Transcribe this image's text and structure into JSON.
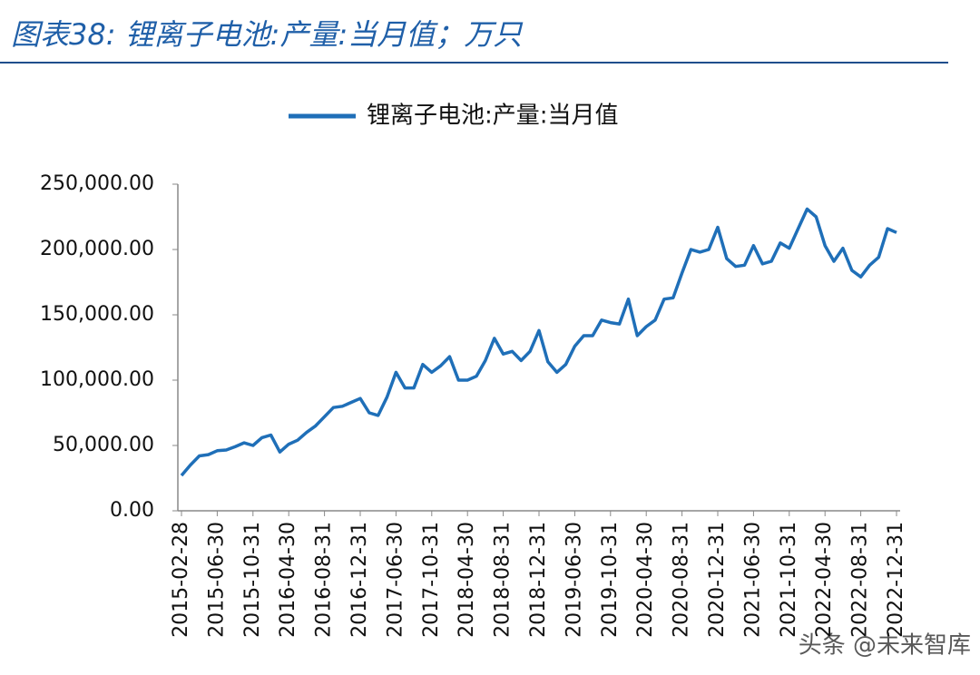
{
  "chart_data": {
    "type": "line",
    "title": "图表38:  锂离子电池:产量:当月值；万只",
    "watermark": "头条 @未来智库",
    "categories": [
      "2015-02-28",
      null,
      null,
      null,
      "2015-06-30",
      null,
      null,
      null,
      "2015-10-31",
      null,
      null,
      null,
      "2016-04-30",
      null,
      null,
      null,
      "2016-08-31",
      null,
      null,
      null,
      "2016-12-31",
      null,
      null,
      null,
      "2017-06-30",
      null,
      null,
      null,
      "2017-10-31",
      null,
      null,
      null,
      "2018-04-30",
      null,
      null,
      null,
      "2018-08-31",
      null,
      null,
      null,
      "2018-12-31",
      null,
      null,
      null,
      "2019-06-30",
      null,
      null,
      null,
      "2019-10-31",
      null,
      null,
      null,
      "2020-04-30",
      null,
      null,
      null,
      "2020-08-31",
      null,
      null,
      null,
      "2020-12-31",
      null,
      null,
      null,
      "2021-06-30",
      null,
      null,
      null,
      "2021-10-31",
      null,
      null,
      null,
      "2022-04-30",
      null,
      null,
      null,
      "2022-08-31",
      null,
      null,
      null,
      "2022-12-31"
    ],
    "series": [
      {
        "name": "锂离子电池:产量:当月值",
        "color": "#1f6fb8",
        "values": [
          27000,
          35000,
          42000,
          43000,
          46000,
          46500,
          49000,
          52000,
          50000,
          56000,
          58000,
          45000,
          51000,
          54000,
          60000,
          65000,
          72000,
          79000,
          80000,
          83000,
          86000,
          75000,
          73000,
          87000,
          106000,
          94000,
          94000,
          112000,
          106000,
          111000,
          118000,
          100000,
          100000,
          103000,
          115000,
          132000,
          120000,
          122000,
          115000,
          122000,
          138000,
          114000,
          106000,
          112000,
          126000,
          134000,
          134000,
          146000,
          144000,
          143000,
          162000,
          134000,
          141000,
          146000,
          162000,
          163000,
          182000,
          200000,
          198000,
          200000,
          217000,
          193000,
          187000,
          188000,
          203000,
          189000,
          191000,
          205000,
          201000,
          216000,
          231000,
          225000,
          203000,
          191000,
          201000,
          184000,
          179000,
          188000,
          194000,
          216000,
          213000
        ]
      }
    ],
    "ylim": [
      0,
      250000
    ],
    "yticks": [
      {
        "value": 0,
        "label": "0.00"
      },
      {
        "value": 50000,
        "label": "50,000.00"
      },
      {
        "value": 100000,
        "label": "100,000.00"
      },
      {
        "value": 150000,
        "label": "150,000.00"
      },
      {
        "value": 200000,
        "label": "200,000.00"
      },
      {
        "value": 250000,
        "label": "250,000.00"
      }
    ],
    "legend": "top"
  }
}
